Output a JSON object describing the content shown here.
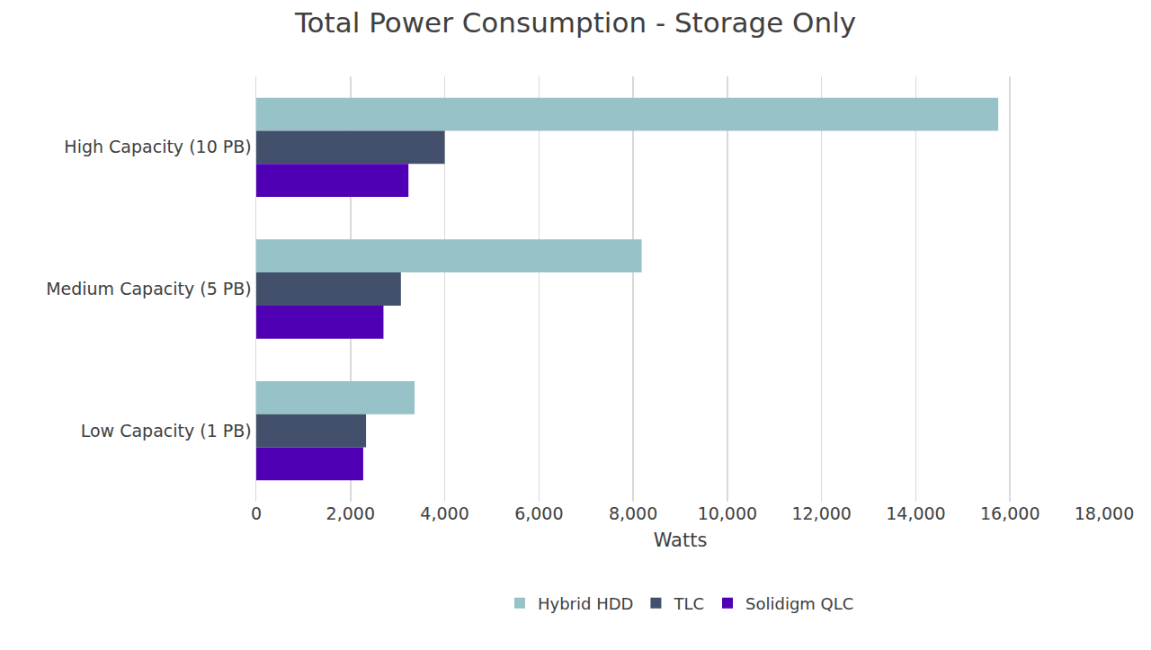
{
  "chart_data": {
    "type": "bar",
    "orientation": "horizontal",
    "title": "Total Power Consumption - Storage Only",
    "x_label": "Watts",
    "categories": [
      "High Capacity (10 PB)",
      "Medium Capacity (5 PB)",
      "Low Capacity (1 PB)"
    ],
    "series": [
      {
        "name": "Hybrid HDD",
        "color": "#96c2c8",
        "values": [
          15750,
          8180,
          3360
        ]
      },
      {
        "name": "TLC",
        "color": "#42506b",
        "values": [
          4000,
          3070,
          2330
        ]
      },
      {
        "name": "Solidigm QLC",
        "color": "#5000b4",
        "values": [
          3230,
          2700,
          2270
        ]
      }
    ],
    "xlim": [
      0,
      18000
    ],
    "xticks": [
      0,
      {
        "value": 2000,
        "label": "2,000"
      },
      {
        "value": 4000,
        "label": "4,000"
      },
      {
        "value": 6000,
        "label": "6,000"
      },
      {
        "value": 8000,
        "label": "8,000"
      },
      {
        "value": 10000,
        "label": "10,000"
      },
      {
        "value": 12000,
        "label": "12,000"
      },
      {
        "value": 14000,
        "label": "14,000"
      },
      {
        "value": 16000,
        "label": "16,000"
      },
      {
        "value": 18000,
        "label": "18,000"
      }
    ],
    "grid": true,
    "legend": "bottom"
  }
}
